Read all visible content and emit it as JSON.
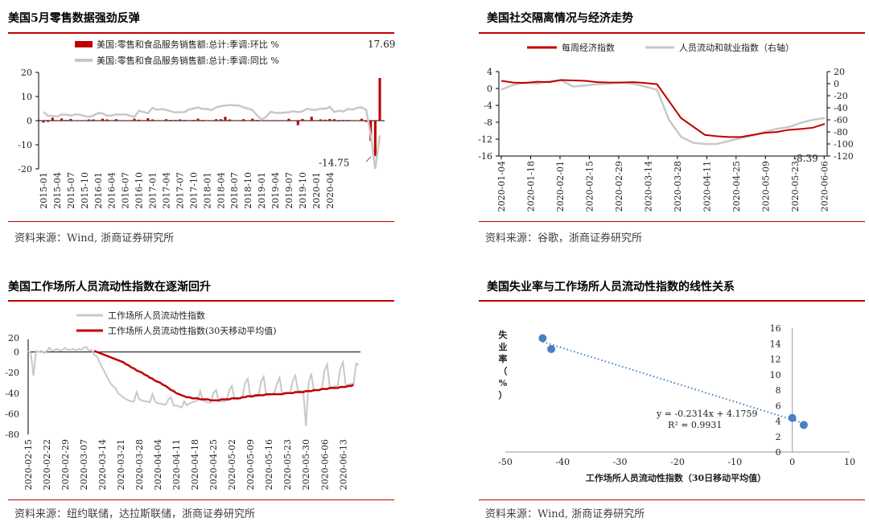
{
  "colors": {
    "red": "#c00000",
    "gray": "#c8c8c8",
    "blue": "#4a7fc1",
    "rule": "#c00000"
  },
  "panels": [
    {
      "title": "美国5月零售数据强劲反弹",
      "source": "资料来源：Wind, 浙商证券研究所"
    },
    {
      "title": "美国社交隔离情况与经济走势",
      "source": "资料来源：谷歌，浙商证券研究所"
    },
    {
      "title": "美国工作场所人员流动性指数在逐渐回升",
      "source": "资料来源：纽约联储，达拉斯联储，浙商证券研究所"
    },
    {
      "title": "美国失业率与工作场所人员流动性指数的线性关系",
      "source": "资料来源：Wind, 浙商证券研究所"
    }
  ],
  "chart_data": [
    {
      "type": "bar+line",
      "legend": [
        "美国:零售和食品服务销售额:总计:季调:环比 %",
        "美国:零售和食品服务销售额:总计:季调:同比 %"
      ],
      "yticks": [
        20,
        10,
        0,
        -10,
        -20
      ],
      "ylim": [
        -20,
        20
      ],
      "xticks": [
        "2015-01",
        "2015-04",
        "2015-07",
        "2015-10",
        "2016-01",
        "2016-04",
        "2016-07",
        "2016-10",
        "2017-01",
        "2017-04",
        "2017-07",
        "2017-10",
        "2018-01",
        "2018-04",
        "2018-07",
        "2018-10",
        "2019-01",
        "2019-04",
        "2019-07",
        "2019-10",
        "2020-01",
        "2020-04"
      ],
      "annotations": [
        "17.69",
        "-14.75"
      ],
      "series": [
        {
          "name": "美国:零售和食品服务销售额:总计:季调:环比 %",
          "type": "bar",
          "values": [
            -0.8,
            -0.5,
            1.2,
            0.2,
            0.9,
            0.3,
            0.7,
            0.1,
            0.1,
            0.0,
            0.5,
            0.5,
            -0.2,
            0.8,
            0.5,
            -0.1,
            0.6,
            0.2,
            0.1,
            0.2,
            0.8,
            0.4,
            0.2,
            1.0,
            0.5,
            -0.2,
            0.1,
            0.6,
            0.3,
            0.3,
            0.5,
            0.3,
            -0.2,
            0.3,
            0.8,
            0.3,
            -0.1,
            0.2,
            0.6,
            0.6,
            1.6,
            0.5,
            -0.1,
            -0.2,
            0.6,
            -0.1,
            0.8,
            0.3,
            0.5,
            0.1,
            0.2,
            -0.2,
            0.1,
            0.0,
            0.8,
            0.1,
            -1.9,
            0.7,
            -0.2,
            1.6,
            -0.2,
            0.5,
            0.4,
            0.7,
            0.6,
            -0.3,
            0.3,
            0.3,
            0.2,
            0.0,
            0.8,
            -0.5,
            -8.3,
            -14.75,
            17.69
          ]
        },
        {
          "name": "美国:零售和食品服务销售额:总计:季调:同比 %",
          "type": "line",
          "values": [
            3.6,
            2.0,
            1.9,
            1.7,
            2.5,
            2.5,
            2.1,
            2.6,
            2.5,
            1.9,
            1.6,
            2.1,
            3.1,
            3.0,
            2.1,
            2.1,
            2.6,
            2.5,
            2.6,
            2.1,
            1.5,
            4.1,
            3.6,
            3.1,
            5.3,
            4.5,
            4.8,
            4.5,
            3.9,
            3.4,
            3.5,
            3.5,
            4.6,
            5.0,
            5.5,
            4.8,
            4.9,
            4.3,
            5.5,
            6.0,
            6.2,
            6.5,
            6.3,
            6.3,
            5.5,
            5.0,
            4.4,
            2.2,
            0.4,
            1.6,
            3.7,
            3.2,
            3.2,
            3.3,
            3.5,
            3.9,
            3.5,
            3.9,
            4.9,
            4.5,
            4.5,
            5.0,
            4.9,
            5.7,
            3.6,
            4.1,
            3.8,
            4.9,
            4.5,
            5.3,
            5.5,
            4.5,
            -5.8,
            -20.0,
            -6.1
          ]
        }
      ]
    },
    {
      "type": "line",
      "legend": [
        "每周经济指数",
        "人员流动和就业指数（右轴）"
      ],
      "yticks_left": [
        4,
        0,
        -4,
        -8,
        -12,
        -16
      ],
      "ylim_left": [
        -16,
        4
      ],
      "yticks_right": [
        20,
        0,
        -20,
        -40,
        -60,
        -80,
        -100,
        -120
      ],
      "ylim_right": [
        -120,
        20
      ],
      "xticks": [
        "2020-01-04",
        "2020-01-18",
        "2020-02-01",
        "2020-02-15",
        "2020-02-29",
        "2020-03-14",
        "2020-03-28",
        "2020-04-11",
        "2020-04-25",
        "2020-05-09",
        "2020-05-23",
        "2020-06-06"
      ],
      "annotations": [
        "-8.39"
      ],
      "series": [
        {
          "name": "每周经济指数",
          "axis": "left",
          "values": [
            1.8,
            1.4,
            1.3,
            1.6,
            1.5,
            2.0,
            1.9,
            1.8,
            1.5,
            1.4,
            1.4,
            1.5,
            1.3,
            1.0,
            -3.0,
            -7.0,
            -9.0,
            -11.0,
            -11.3,
            -11.5,
            -11.5,
            -11.0,
            -10.5,
            -10.3,
            -9.8,
            -9.6,
            -9.3,
            -8.39
          ]
        },
        {
          "name": "人员流动和就业指数（右轴）",
          "axis": "right",
          "values": [
            -10,
            -2,
            2,
            0,
            4,
            6,
            -5,
            -3,
            -1,
            0,
            2,
            0,
            -5,
            -10,
            -60,
            -88,
            -98,
            -100,
            -100,
            -95,
            -90,
            -86,
            -80,
            -75,
            -72,
            -65,
            -60,
            -57
          ]
        }
      ]
    },
    {
      "type": "line",
      "legend": [
        "工作场所人员流动性指数",
        "工作场所人员流动性指数(30天移动平均值)"
      ],
      "yticks": [
        20,
        0,
        -20,
        -40,
        -60,
        -80
      ],
      "ylim": [
        -80,
        20
      ],
      "xticks": [
        "2020-02-15",
        "2020-02-22",
        "2020-02-29",
        "2020-03-07",
        "2020-03-14",
        "2020-03-21",
        "2020-03-28",
        "2020-04-04",
        "2020-04-11",
        "2020-04-18",
        "2020-04-25",
        "2020-05-02",
        "2020-05-09",
        "2020-05-16",
        "2020-05-23",
        "2020-05-30",
        "2020-06-06",
        "2020-06-13"
      ],
      "series": [
        {
          "name": "工作场所人员流动性指数",
          "values": [
            1,
            -1,
            -23,
            1,
            0,
            1,
            -1,
            1,
            4,
            1,
            2,
            3,
            1,
            2,
            4,
            2,
            2,
            3,
            1,
            3,
            2,
            4,
            5,
            1,
            2,
            -3,
            -4,
            -10,
            -15,
            -20,
            -25,
            -30,
            -33,
            -35,
            -40,
            -42,
            -44,
            -46,
            -47,
            -48,
            -48,
            -39,
            -46,
            -47,
            -48,
            -48,
            -49,
            -41,
            -48,
            -50,
            -50,
            -51,
            -51,
            -46,
            -44,
            -52,
            -52,
            -53,
            -54,
            -48,
            -52,
            -50,
            -49,
            -48,
            -47,
            -38,
            -47,
            -48,
            -49,
            -49,
            -40,
            -37,
            -48,
            -48,
            -48,
            -47,
            -37,
            -33,
            -46,
            -46,
            -45,
            -44,
            -30,
            -26,
            -44,
            -44,
            -43,
            -43,
            -29,
            -24,
            -42,
            -42,
            -41,
            -40,
            -31,
            -25,
            -41,
            -41,
            -40,
            -40,
            -28,
            -23,
            -38,
            -38,
            -38,
            -72,
            -30,
            -21,
            -38,
            -37,
            -37,
            -36,
            -18,
            -12,
            -34,
            -34,
            -33,
            -33,
            -16,
            -10,
            -32,
            -32,
            -31,
            -31,
            -11,
            -13
          ]
        },
        {
          "name": "工作场所人员流动性指数(30天移动平均值)",
          "values": [
            null,
            null,
            null,
            null,
            null,
            null,
            null,
            null,
            null,
            null,
            null,
            null,
            null,
            null,
            null,
            null,
            null,
            null,
            null,
            null,
            null,
            null,
            null,
            null,
            null,
            1,
            0,
            -1,
            -2,
            -3,
            -4,
            -5,
            -6,
            -7,
            -8,
            -9,
            -10,
            -12,
            -13,
            -15,
            -16,
            -18,
            -19,
            -20,
            -22,
            -23,
            -25,
            -26,
            -28,
            -29,
            -30,
            -32,
            -33,
            -35,
            -37,
            -38,
            -40,
            -41,
            -42,
            -43,
            -44,
            -44,
            -45,
            -45,
            -45,
            -46,
            -46,
            -46,
            -46,
            -47,
            -47,
            -47,
            -47,
            -46,
            -46,
            -46,
            -46,
            -45,
            -45,
            -45,
            -45,
            -44,
            -44,
            -43,
            -43,
            -43,
            -42,
            -42,
            -42,
            -42,
            -41,
            -41,
            -41,
            -41,
            -41,
            -41,
            -41,
            -40,
            -40,
            -40,
            -40,
            -39,
            -39,
            -39,
            -39,
            -38,
            -38,
            -38,
            -37,
            -37,
            -37,
            -36,
            -36,
            -36,
            -35,
            -35,
            -35,
            -35,
            -34,
            -34,
            -34,
            -33,
            -33,
            -32
          ]
        }
      ]
    },
    {
      "type": "scatter",
      "xlabel": "工作场所人员流动性指数（30日移动平均值）",
      "ylabel": "失业率（%）",
      "xlim": [
        -50,
        10
      ],
      "ylim": [
        0,
        16
      ],
      "xticks": [
        -50,
        -40,
        -30,
        -20,
        -10,
        0,
        10
      ],
      "yticks": [
        0,
        2,
        4,
        6,
        8,
        10,
        12,
        14,
        16
      ],
      "equation": "y = -0.2314x + 4.1759",
      "r2": "R² = 0.9931",
      "points": [
        {
          "x": -43.5,
          "y": 14.7
        },
        {
          "x": -42,
          "y": 13.3
        },
        {
          "x": 0,
          "y": 4.4
        },
        {
          "x": 2,
          "y": 3.5
        }
      ],
      "trendline": {
        "slope": -0.2314,
        "intercept": 4.1759,
        "x_from": -43.5,
        "x_to": 2
      }
    }
  ]
}
